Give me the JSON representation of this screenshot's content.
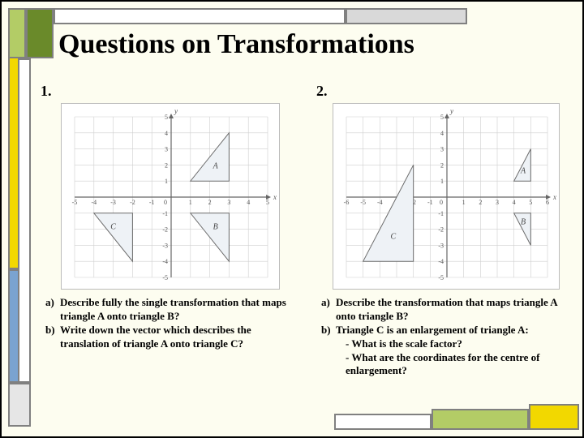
{
  "title": "Questions on Transformations",
  "q1": {
    "num": "1.",
    "a_label": "a)",
    "a_text": "Describe fully the single transformation that maps triangle A onto triangle B?",
    "b_label": "b)",
    "b_text": "Write down the vector which describes the translation of triangle A onto triangle C?",
    "graph": {
      "xmin": -5,
      "xmax": 5,
      "ymin": -5,
      "ymax": 5,
      "triangles": [
        {
          "label": "A",
          "pts": [
            [
              1,
              1
            ],
            [
              3,
              1
            ],
            [
              3,
              4
            ]
          ],
          "lx": 2.3,
          "ly": 1.8
        },
        {
          "label": "B",
          "pts": [
            [
              1,
              -1
            ],
            [
              3,
              -1
            ],
            [
              3,
              -4
            ]
          ],
          "lx": 2.3,
          "ly": -2.0
        },
        {
          "label": "C",
          "pts": [
            [
              -4,
              -1
            ],
            [
              -2,
              -1
            ],
            [
              -2,
              -4
            ]
          ],
          "lx": -3.0,
          "ly": -2.0
        }
      ]
    }
  },
  "q2": {
    "num": "2.",
    "a_label": "a)",
    "a_text": "Describe the transformation that maps triangle A onto triangle B?",
    "b_label": "b)",
    "b_text": "Triangle C is an enlargement of triangle A:",
    "b1": "- What is the scale factor?",
    "b2": "- What are the coordinates for the centre of enlargement?",
    "graph": {
      "xmin": -6,
      "xmax": 6,
      "ymin": -5,
      "ymax": 5,
      "triangles": [
        {
          "label": "A",
          "pts": [
            [
              4,
              1
            ],
            [
              5,
              1
            ],
            [
              5,
              3
            ]
          ],
          "lx": 4.55,
          "ly": 1.5
        },
        {
          "label": "B",
          "pts": [
            [
              4,
              -1
            ],
            [
              5,
              -1
            ],
            [
              5,
              -3
            ]
          ],
          "lx": 4.55,
          "ly": -1.7
        },
        {
          "label": "C",
          "pts": [
            [
              -5,
              -4
            ],
            [
              -2,
              -4
            ],
            [
              -2,
              2
            ]
          ],
          "lx": -3.2,
          "ly": -2.6
        }
      ]
    }
  },
  "style": {
    "grid_color": "#cfcfcf",
    "axis_color": "#666666",
    "tri_fill": "#eef2f6",
    "tri_stroke": "#6a6a6a",
    "tick_font": 8,
    "label_font": 9
  }
}
